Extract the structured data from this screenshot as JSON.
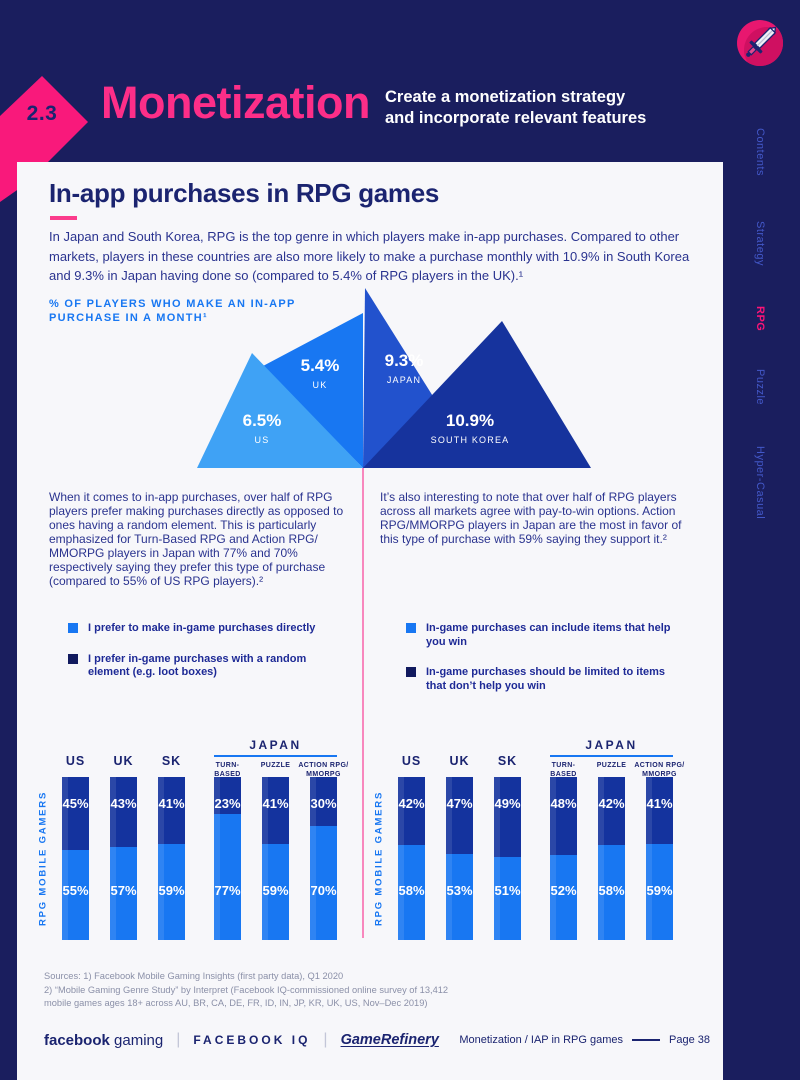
{
  "header": {
    "section_number": "2.3",
    "title": "Monetization",
    "subtitle_line1": "Create a monetization strategy",
    "subtitle_line2": "and incorporate relevant features"
  },
  "sidebar": {
    "icon": "sword-icon",
    "items": [
      {
        "label": "Contents",
        "active": false
      },
      {
        "label": "Strategy",
        "active": false
      },
      {
        "label": "RPG",
        "active": true
      },
      {
        "label": "Puzzle",
        "active": false
      },
      {
        "label": "Hyper-Casual",
        "active": false
      }
    ],
    "active_color": "#fb1478",
    "inactive_color": "#4358c9"
  },
  "article": {
    "heading": "In-app purchases in RPG games",
    "intro": "In Japan and South Korea, RPG is the top genre in which players make in-app purchases. Compared to other markets, players in these countries are also more likely to make a purchase monthly with 10.9% in South Korea and 9.3% in Japan having done so (compared to 5.4% of RPG players in the UK).¹",
    "left_paragraph": "When it comes to in-app purchases, over half of RPG players prefer making purchases directly as opposed to ones having a random element. This is particularly emphasized for Turn-Based RPG and Action RPG/ MMORPG players in Japan with 77% and 70% respectively saying they prefer this type of purchase (compared to 55% of US RPG players).²",
    "right_paragraph": "It’s also interesting to note that over half of RPG players across all markets agree with pay-to-win options. Action RPG/MMORPG players in Japan are the most in favor of this type of purchase with 59% saying they support it.²"
  },
  "legends": {
    "left": [
      {
        "color": "#1877f2",
        "label": "I prefer to make in-game purchases directly"
      },
      {
        "color": "#111a5e",
        "label": "I prefer in-game purchases with a random element (e.g. loot boxes)"
      }
    ],
    "right": [
      {
        "color": "#1877f2",
        "label": "In-game purchases can include items that help you win"
      },
      {
        "color": "#111a5e",
        "label": "In-game purchases should be limited to items that don’t help you win"
      }
    ]
  },
  "chart_data": [
    {
      "type": "pyramid-triangles",
      "title_line1": "% OF PLAYERS WHO MAKE AN IN-APP",
      "title_line2": "PURCHASE IN A MONTH¹",
      "items": [
        {
          "label": "US",
          "value": 6.5,
          "display": "6.5%",
          "color": "#3fa2f5"
        },
        {
          "label": "UK",
          "value": 5.4,
          "display": "5.4%",
          "color": "#1877f2"
        },
        {
          "label": "JAPAN",
          "value": 9.3,
          "display": "9.3%",
          "color": "#2252cd"
        },
        {
          "label": "SOUTH KOREA",
          "value": 10.9,
          "display": "10.9%",
          "color": "#16339d"
        }
      ]
    },
    {
      "type": "stacked-bar",
      "id": "purchase-preference",
      "ylabel": "RPG MOBILE GAMERS",
      "group_header": "JAPAN",
      "categories": [
        "US",
        "UK",
        "SK",
        "TURN-BASED",
        "PUZZLE",
        "ACTION RPG/MMORPG"
      ],
      "category_display": [
        [
          "US"
        ],
        [
          "UK"
        ],
        [
          "SK"
        ],
        [
          "TURN-",
          "BASED"
        ],
        [
          "PUZZLE"
        ],
        [
          "ACTION RPG/",
          "MMORPG"
        ]
      ],
      "ylim": [
        0,
        100
      ],
      "series": [
        {
          "name": "I prefer to make in-game purchases directly",
          "color": "#1877f2",
          "values": [
            55,
            57,
            59,
            77,
            59,
            70
          ]
        },
        {
          "name": "I prefer in-game purchases with a random element (e.g. loot boxes)",
          "color": "#14339e",
          "values": [
            45,
            43,
            41,
            23,
            41,
            30
          ]
        }
      ]
    },
    {
      "type": "stacked-bar",
      "id": "pay-to-win",
      "ylabel": "RPG MOBILE GAMERS",
      "group_header": "JAPAN",
      "categories": [
        "US",
        "UK",
        "SK",
        "TURN-BASED",
        "PUZZLE",
        "ACTION RPG/MMORPG"
      ],
      "category_display": [
        [
          "US"
        ],
        [
          "UK"
        ],
        [
          "SK"
        ],
        [
          "TURN-",
          "BASED"
        ],
        [
          "PUZZLE"
        ],
        [
          "ACTION RPG/",
          "MMORPG"
        ]
      ],
      "ylim": [
        0,
        100
      ],
      "series": [
        {
          "name": "In-game purchases can include items that help you win",
          "color": "#1877f2",
          "values": [
            58,
            53,
            51,
            52,
            58,
            59
          ]
        },
        {
          "name": "In-game purchases should be limited to items that don’t help you win",
          "color": "#14339e",
          "values": [
            42,
            47,
            49,
            48,
            42,
            41
          ]
        }
      ]
    }
  ],
  "sources": {
    "line1": "Sources: 1) Facebook Mobile Gaming Insights (first party data), Q1 2020",
    "line2": "2) “Mobile Gaming Genre Study” by Interpret (Facebook IQ-commissioned online survey of 13,412",
    "line3": "mobile games ages 18+ across AU, BR, CA, DE, FR, ID, IN, JP, KR, UK, US, Nov–Dec 2019)"
  },
  "footer": {
    "brand_facebook": "facebook",
    "brand_gaming": "gaming",
    "brand_iq": "FACEBOOK IQ",
    "brand_gamerefinery": "GameRefinery",
    "page_label": "Monetization / IAP in RPG games",
    "page_number": "Page 38"
  },
  "colors": {
    "background": "#1a1e5e",
    "card": "#f7f7fa",
    "accent_pink": "#fd2e88",
    "primary_blue": "#1877f2",
    "dark_navy": "#14339e",
    "divider_pink": "#f887bd"
  }
}
